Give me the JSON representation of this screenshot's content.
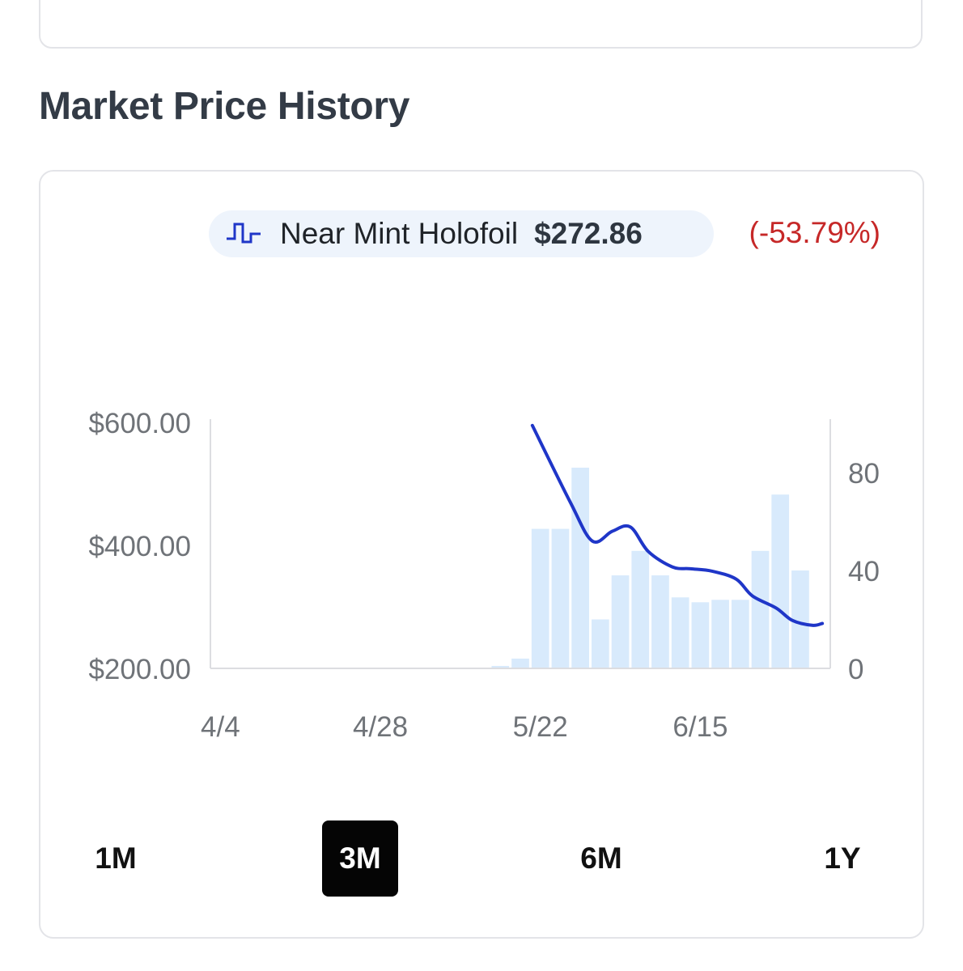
{
  "section": {
    "title": "Market Price History"
  },
  "legend": {
    "icon": "step-line-icon",
    "label": "Near Mint Holofoil",
    "price": "$272.86",
    "change": "(-53.79%)"
  },
  "colors": {
    "line": "#1f36c8",
    "bars": "#d8eafc",
    "change_negative": "#c62828",
    "active_range_bg": "#050505"
  },
  "chart_data": {
    "type": "line",
    "x_tick_labels": [
      "4/4",
      "4/28",
      "5/22",
      "6/15"
    ],
    "y_left": {
      "ticks": [
        "$200.00",
        "$400.00",
        "$600.00"
      ],
      "range": [
        200,
        600
      ]
    },
    "y_right": {
      "ticks": [
        "0",
        "40",
        "80"
      ],
      "range": [
        0,
        100
      ]
    },
    "grid": false,
    "series": [
      {
        "name": "Near Mint Holofoil",
        "type": "line",
        "axis": "left",
        "x_index": [
          15.6,
          17.5,
          18.6,
          19.6,
          20.5,
          21.4,
          22.6,
          23.5,
          24.6,
          25.8,
          26.6,
          27.8,
          28.6,
          29.6,
          30.1
        ],
        "values": [
          595,
          470,
          407,
          423,
          430,
          390,
          365,
          362,
          358,
          345,
          318,
          298,
          278,
          270,
          273
        ]
      },
      {
        "name": "Volume",
        "type": "bar",
        "axis": "right",
        "x_index": [
          14,
          15,
          16,
          17,
          18,
          19,
          20,
          21,
          22,
          23,
          24,
          25,
          26,
          27,
          28,
          29,
          30
        ],
        "values": [
          1,
          4,
          57,
          57,
          82,
          20,
          38,
          48,
          38,
          29,
          27,
          28,
          28,
          48,
          71,
          40,
          0
        ]
      }
    ]
  },
  "ranges": {
    "options": [
      "1M",
      "3M",
      "6M",
      "1Y"
    ],
    "selected": "3M"
  }
}
